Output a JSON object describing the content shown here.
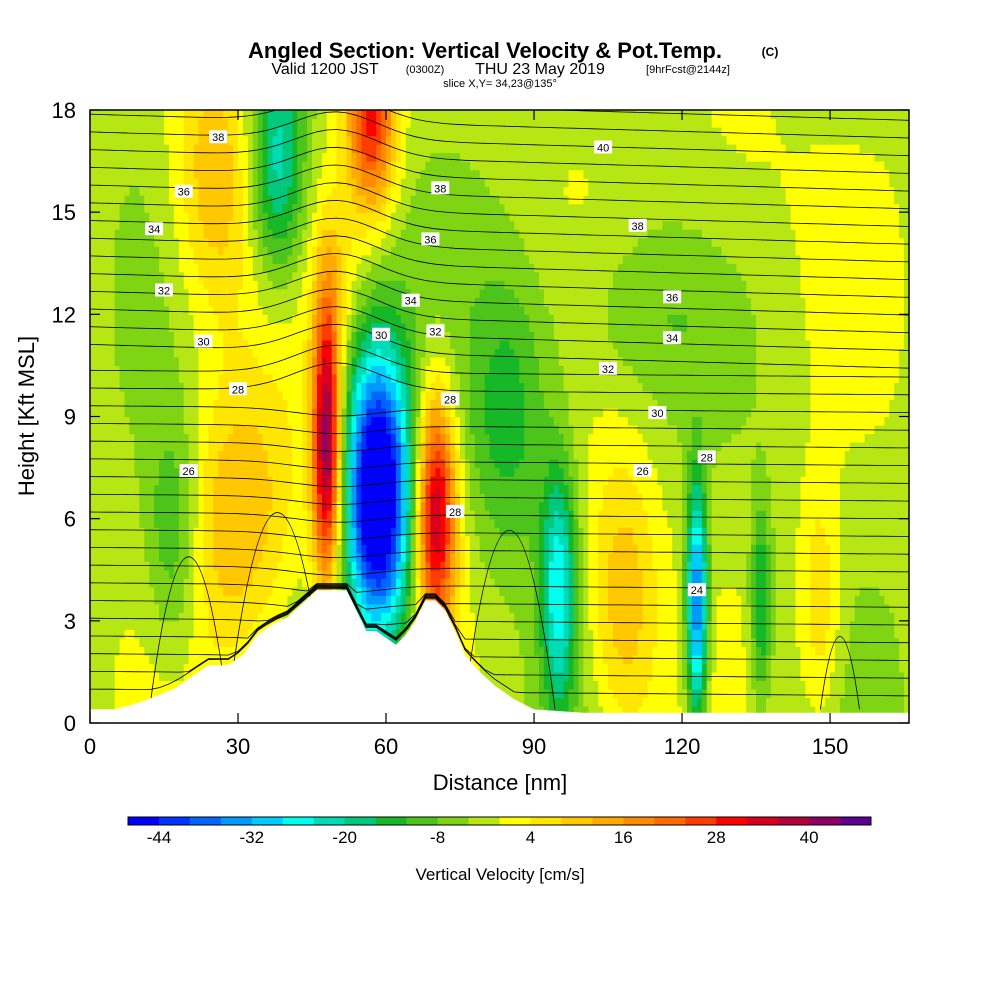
{
  "title": {
    "main": "Angled Section: Vertical Velocity & Pot.Temp.",
    "main_suffix": "(C)",
    "line2_a": "Valid 1200 JST",
    "line2_b": "(0300Z)",
    "line2_c": "THU 23 May 2019",
    "line2_d": "[9hrFcst@2144z]",
    "line3": "slice X,Y= 34,23@135°"
  },
  "chart_data": {
    "type": "heatmap",
    "xlabel": "Distance [nm]",
    "ylabel": "Height [Kft MSL]",
    "xlim": [
      0,
      166
    ],
    "ylim": [
      0,
      18
    ],
    "x_ticks": [
      0,
      30,
      60,
      90,
      120,
      150
    ],
    "y_ticks": [
      0,
      3,
      6,
      9,
      12,
      15,
      18
    ],
    "colorbar": {
      "title": "Vertical Velocity [cm/s]",
      "tick_labels": [
        -44,
        -32,
        -20,
        -8,
        4,
        16,
        28,
        40
      ],
      "range": [
        -48,
        48
      ],
      "step": 4,
      "colors": [
        "#0000ff",
        "#0033ff",
        "#0066ff",
        "#0099ff",
        "#00ccff",
        "#00ffee",
        "#00dcb4",
        "#00c87c",
        "#17b828",
        "#4cc41c",
        "#7fd414",
        "#b6e614",
        "#ffff00",
        "#ffe600",
        "#ffc800",
        "#ffaa00",
        "#ff8c00",
        "#ff6a00",
        "#ff3c00",
        "#ff0000",
        "#d8001c",
        "#b40038",
        "#8c0064",
        "#5c0090"
      ]
    },
    "terrain": [
      [
        0,
        0.4
      ],
      [
        5,
        0.4
      ],
      [
        10,
        0.6
      ],
      [
        17,
        1.0
      ],
      [
        20,
        1.3
      ],
      [
        24,
        1.7
      ],
      [
        28,
        1.7
      ],
      [
        31,
        2.0
      ],
      [
        34,
        2.6
      ],
      [
        37,
        2.9
      ],
      [
        40,
        3.1
      ],
      [
        43,
        3.5
      ],
      [
        46,
        3.9
      ],
      [
        48,
        3.9
      ],
      [
        52,
        3.9
      ],
      [
        54,
        3.3
      ],
      [
        56,
        2.7
      ],
      [
        58,
        2.7
      ],
      [
        60,
        2.5
      ],
      [
        62,
        2.3
      ],
      [
        64,
        2.6
      ],
      [
        66,
        3.0
      ],
      [
        68,
        3.6
      ],
      [
        70,
        3.6
      ],
      [
        72,
        3.3
      ],
      [
        74,
        2.7
      ],
      [
        76,
        2.0
      ],
      [
        79,
        1.5
      ],
      [
        82,
        1.1
      ],
      [
        86,
        0.7
      ],
      [
        90,
        0.4
      ],
      [
        100,
        0.3
      ],
      [
        120,
        0.3
      ],
      [
        140,
        0.3
      ],
      [
        150,
        0.3
      ],
      [
        166,
        0.3
      ]
    ],
    "updraft_cells": [
      {
        "x": 48,
        "y": 8.2,
        "sx": 2.0,
        "sy": 3.0,
        "w": 44
      },
      {
        "x": 50,
        "y": 13.0,
        "sx": 3.0,
        "sy": 1.5,
        "w": 6
      },
      {
        "x": 57,
        "y": 6.8,
        "sx": 4.0,
        "sy": 3.0,
        "w": -44
      },
      {
        "x": 62,
        "y": 6.5,
        "sx": 4.0,
        "sy": 3.0,
        "w": -22
      },
      {
        "x": 70,
        "y": 6.2,
        "sx": 3.0,
        "sy": 2.5,
        "w": 40
      },
      {
        "x": 38,
        "y": 16.5,
        "sx": 4.0,
        "sy": 2.5,
        "w": -22
      },
      {
        "x": 57,
        "y": 17.8,
        "sx": 3.5,
        "sy": 2.0,
        "w": 32
      },
      {
        "x": 25,
        "y": 16.0,
        "sx": 6.0,
        "sy": 3.0,
        "w": 14
      },
      {
        "x": 30,
        "y": 6.0,
        "sx": 8.0,
        "sy": 3.0,
        "w": 14
      },
      {
        "x": 17,
        "y": 5.5,
        "sx": 4.0,
        "sy": 2.5,
        "w": -12
      },
      {
        "x": 95,
        "y": 4.0,
        "sx": 2.5,
        "sy": 2.5,
        "w": -24
      },
      {
        "x": 123,
        "y": 3.5,
        "sx": 1.5,
        "sy": 2.5,
        "w": -36
      },
      {
        "x": 136,
        "y": 3.5,
        "sx": 1.5,
        "sy": 2.0,
        "w": -16
      },
      {
        "x": 108,
        "y": 3.5,
        "sx": 5.0,
        "sy": 3.0,
        "w": 14
      },
      {
        "x": 148,
        "y": 3.5,
        "sx": 3.0,
        "sy": 2.5,
        "w": 10
      },
      {
        "x": 130,
        "y": 16.0,
        "sx": 10.0,
        "sy": 3.0,
        "w": 4
      },
      {
        "x": 110,
        "y": 12.0,
        "sx": 12.0,
        "sy": 2.0,
        "w": -6
      },
      {
        "x": 85,
        "y": 9.0,
        "sx": 6.0,
        "sy": 3.0,
        "w": -12
      }
    ],
    "theta_labels": [
      {
        "text": "38",
        "x": 26,
        "y": 17.2
      },
      {
        "text": "36",
        "x": 19,
        "y": 15.6
      },
      {
        "text": "34",
        "x": 13,
        "y": 14.5
      },
      {
        "text": "32",
        "x": 15,
        "y": 12.7
      },
      {
        "text": "30",
        "x": 23,
        "y": 11.2
      },
      {
        "text": "28",
        "x": 30,
        "y": 9.8
      },
      {
        "text": "26",
        "x": 20,
        "y": 7.4
      },
      {
        "text": "38",
        "x": 71,
        "y": 15.7
      },
      {
        "text": "36",
        "x": 69,
        "y": 14.2
      },
      {
        "text": "34",
        "x": 65,
        "y": 12.4
      },
      {
        "text": "30",
        "x": 59,
        "y": 11.4
      },
      {
        "text": "32",
        "x": 70,
        "y": 11.5
      },
      {
        "text": "28",
        "x": 73,
        "y": 9.5
      },
      {
        "text": "28",
        "x": 74,
        "y": 6.2
      },
      {
        "text": "40",
        "x": 104,
        "y": 16.9
      },
      {
        "text": "38",
        "x": 111,
        "y": 14.6
      },
      {
        "text": "36",
        "x": 118,
        "y": 12.5
      },
      {
        "text": "34",
        "x": 118,
        "y": 11.3
      },
      {
        "text": "32",
        "x": 105,
        "y": 10.4
      },
      {
        "text": "30",
        "x": 115,
        "y": 9.1
      },
      {
        "text": "28",
        "x": 125,
        "y": 7.8
      },
      {
        "text": "26",
        "x": 112,
        "y": 7.4
      },
      {
        "text": "24",
        "x": 123,
        "y": 3.9
      }
    ]
  }
}
